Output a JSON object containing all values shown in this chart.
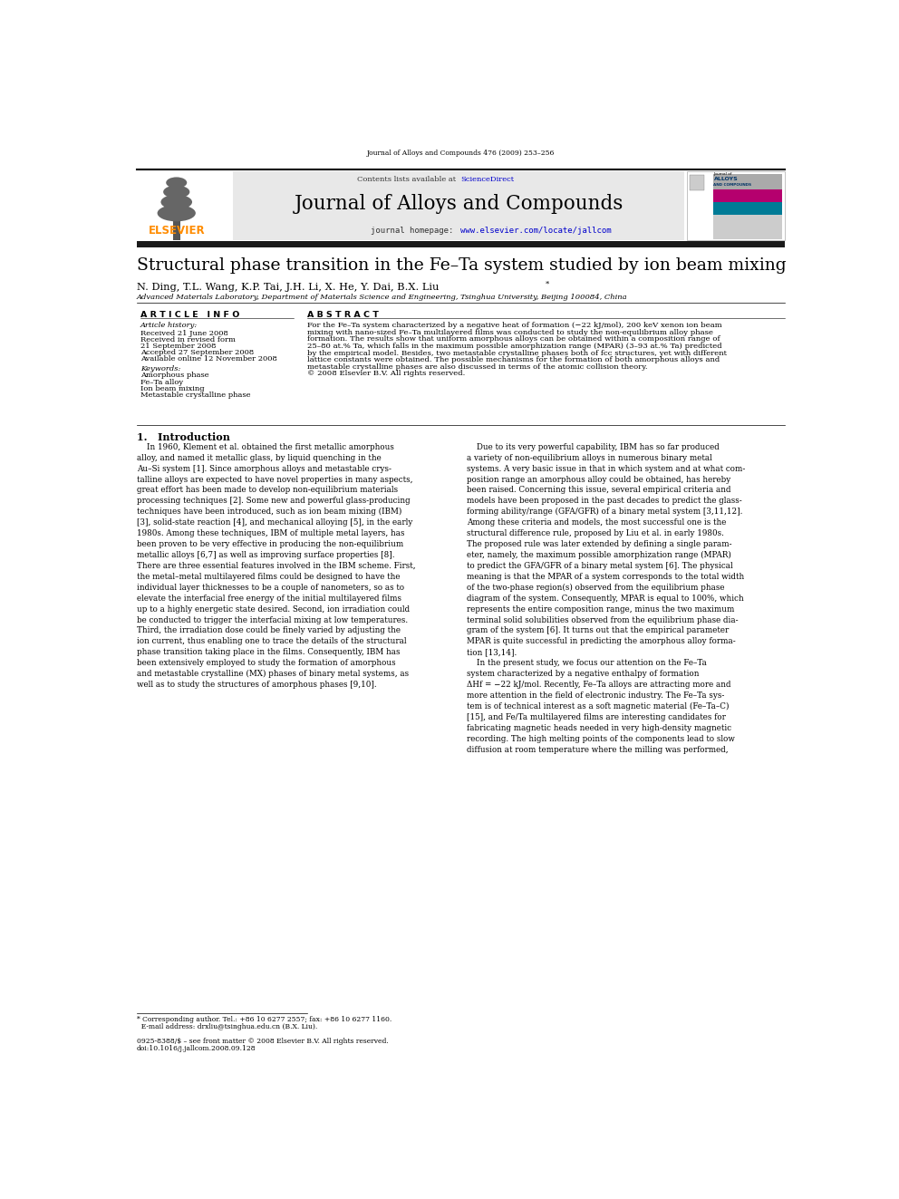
{
  "page_width": 9.92,
  "page_height": 13.23,
  "background_color": "#ffffff",
  "journal_header_text": "Journal of Alloys and Compounds 476 (2009) 253–256",
  "header_bg_color": "#e8e8e8",
  "elsevier_color": "#ff8c00",
  "sciencedirect_color": "#0000cc",
  "url_color": "#0000cc",
  "journal_title": "Journal of Alloys and Compounds",
  "journal_homepage_label": "journal homepage: ",
  "journal_homepage_url": "www.elsevier.com/locate/jallcom",
  "contents_line_prefix": "Contents lists available at ",
  "contents_line_link": "ScienceDirect",
  "paper_title": "Structural phase transition in the Fe–Ta system studied by ion beam mixing",
  "authors": "N. Ding, T.L. Wang, K.P. Tai, J.H. Li, X. He, Y. Dai, B.X. Liu",
  "affiliation": "Advanced Materials Laboratory, Department of Materials Science and Engineering, Tsinghua University, Beijing 100084, China",
  "article_info_title": "A R T I C L E   I N F O",
  "abstract_title": "A B S T R A C T",
  "article_history_label": "Article history:",
  "received": "Received 21 June 2008",
  "received_revised": "Received in revised form",
  "received_revised2": "21 September 2008",
  "accepted": "Accepted 27 September 2008",
  "available": "Available online 12 November 2008",
  "keywords_label": "Keywords:",
  "keyword1": "Amorphous phase",
  "keyword2": "Fe–Ta alloy",
  "keyword3": "Ion beam mixing",
  "keyword4": "Metastable crystalline phase",
  "abstract_lines": [
    "For the Fe–Ta system characterized by a negative heat of formation (−22 kJ/mol), 200 keV xenon ion beam",
    "mixing with nano-sized Fe–Ta multilayered films was conducted to study the non-equilibrium alloy phase",
    "formation. The results show that uniform amorphous alloys can be obtained within a composition range of",
    "25–80 at.% Ta, which falls in the maximum possible amorphization range (MPAR) (3–93 at.% Ta) predicted",
    "by the empirical model. Besides, two metastable crystalline phases both of fcc structures, yet with different",
    "lattice constants were obtained. The possible mechanisms for the formation of both amorphous alloys and",
    "metastable crystalline phases are also discussed in terms of the atomic collision theory.",
    "© 2008 Elsevier B.V. All rights reserved."
  ],
  "section1_title": "1.   Introduction",
  "intro_col1_lines": [
    "    In 1960, Klement et al. obtained the first metallic amorphous",
    "alloy, and named it metallic glass, by liquid quenching in the",
    "Au–Si system [1]. Since amorphous alloys and metastable crys-",
    "talline alloys are expected to have novel properties in many aspects,",
    "great effort has been made to develop non-equilibrium materials",
    "processing techniques [2]. Some new and powerful glass-producing",
    "techniques have been introduced, such as ion beam mixing (IBM)",
    "[3], solid-state reaction [4], and mechanical alloying [5], in the early",
    "1980s. Among these techniques, IBM of multiple metal layers, has",
    "been proven to be very effective in producing the non-equilibrium",
    "metallic alloys [6,7] as well as improving surface properties [8].",
    "There are three essential features involved in the IBM scheme. First,",
    "the metal–metal multilayered films could be designed to have the",
    "individual layer thicknesses to be a couple of nanometers, so as to",
    "elevate the interfacial free energy of the initial multilayered films",
    "up to a highly energetic state desired. Second, ion irradiation could",
    "be conducted to trigger the interfacial mixing at low temperatures.",
    "Third, the irradiation dose could be finely varied by adjusting the",
    "ion current, thus enabling one to trace the details of the structural",
    "phase transition taking place in the films. Consequently, IBM has",
    "been extensively employed to study the formation of amorphous",
    "and metastable crystalline (MX) phases of binary metal systems, as",
    "well as to study the structures of amorphous phases [9,10]."
  ],
  "intro_col2_lines": [
    "    Due to its very powerful capability, IBM has so far produced",
    "a variety of non-equilibrium alloys in numerous binary metal",
    "systems. A very basic issue in that in which system and at what com-",
    "position range an amorphous alloy could be obtained, has hereby",
    "been raised. Concerning this issue, several empirical criteria and",
    "models have been proposed in the past decades to predict the glass-",
    "forming ability/range (GFA/GFR) of a binary metal system [3,11,12].",
    "Among these criteria and models, the most successful one is the",
    "structural difference rule, proposed by Liu et al. in early 1980s.",
    "The proposed rule was later extended by defining a single param-",
    "eter, namely, the maximum possible amorphization range (MPAR)",
    "to predict the GFA/GFR of a binary metal system [6]. The physical",
    "meaning is that the MPAR of a system corresponds to the total width",
    "of the two-phase region(s) observed from the equilibrium phase",
    "diagram of the system. Consequently, MPAR is equal to 100%, which",
    "represents the entire composition range, minus the two maximum",
    "terminal solid solubilities observed from the equilibrium phase dia-",
    "gram of the system [6]. It turns out that the empirical parameter",
    "MPAR is quite successful in predicting the amorphous alloy forma-",
    "tion [13,14].",
    "    In the present study, we focus our attention on the Fe–Ta",
    "system characterized by a negative enthalpy of formation",
    "ΔHf = −22 kJ/mol. Recently, Fe–Ta alloys are attracting more and",
    "more attention in the field of electronic industry. The Fe–Ta sys-",
    "tem is of technical interest as a soft magnetic material (Fe–Ta–C)",
    "[15], and Fe/Ta multilayered films are interesting candidates for",
    "fabricating magnetic heads needed in very high-density magnetic",
    "recording. The high melting points of the components lead to slow",
    "diffusion at room temperature where the milling was performed,"
  ],
  "footnote_line1": "* Corresponding author. Tel.: +86 10 6277 2557; fax: +86 10 6277 1160.",
  "footnote_line2": "  E-mail address: drxliu@tsinghua.edu.cn (B.X. Liu).",
  "copyright_line1": "0925-8388/$ – see front matter © 2008 Elsevier B.V. All rights reserved.",
  "copyright_line2": "doi:10.1016/j.jallcom.2008.09.128",
  "dark_bar_color": "#1a1a1a"
}
